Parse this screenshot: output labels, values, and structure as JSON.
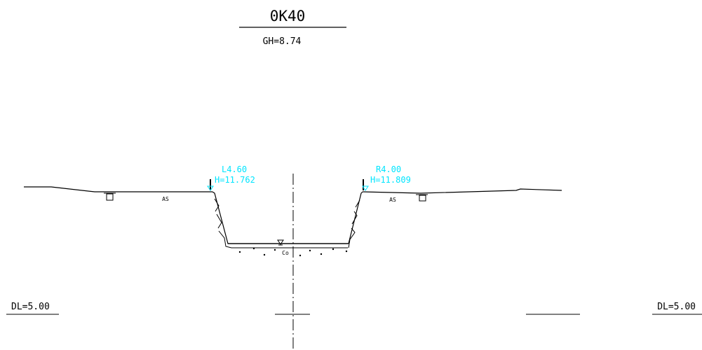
{
  "drawing": {
    "title": "0K40",
    "ground_height": "GH=8.74",
    "datum_left": "DL=5.00",
    "datum_right": "DL=5.00",
    "left_bank": {
      "label": "L4.60",
      "height": "H=11.762",
      "surface": "AS"
    },
    "right_bank": {
      "label": "R4.00",
      "height": "H=11.809",
      "surface": "AS"
    },
    "channel_bed": "Co"
  },
  "colors": {
    "line": "#000000",
    "annotation": "#00e5ff",
    "background": "#ffffff"
  }
}
